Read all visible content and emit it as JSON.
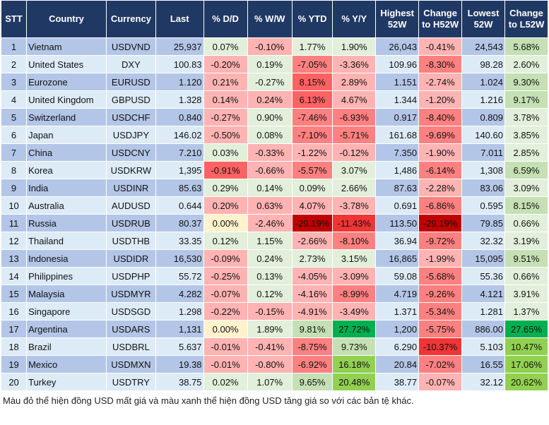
{
  "headers": [
    "STT",
    "Country",
    "Currency",
    "Last",
    "% D/D",
    "% W/W",
    "% YTD",
    "% Y/Y",
    "Highest 52W",
    "Change to H52W",
    "Lowest 52W",
    "Change to L52W"
  ],
  "colors": {
    "header": "#203864",
    "odd_row": "#b4c6e7",
    "even_row": "#ddebf7",
    "light_red": "#ffb3b3",
    "red": "#ff8080",
    "strong_red": "#ff6262",
    "bright_red": "#f03535",
    "dark_red": "#c00000",
    "light_green": "#e2efda",
    "green": "#c5e0b4",
    "strong_green": "#92d050",
    "dark_green": "#00b050",
    "neutral": "#fff2cc"
  },
  "rows": [
    {
      "stt": "1",
      "country": "Vietnam",
      "currency": "USDVND",
      "last": "25,937",
      "dd": "0.07%",
      "ww": "-0.10%",
      "ytd": "1.77%",
      "yy": "1.90%",
      "high": "26,043",
      "chg_high": "-0.41%",
      "low": "24,543",
      "chg_low": "5.68%",
      "shade": [
        "lg",
        "lr",
        "lg",
        "lg",
        "lr",
        "g"
      ]
    },
    {
      "stt": "2",
      "country": "United States",
      "currency": "DXY",
      "last": "100.83",
      "dd": "-0.20%",
      "ww": "0.19%",
      "ytd": "-7.05%",
      "yy": "-3.36%",
      "high": "109.96",
      "chg_high": "-8.30%",
      "low": "98.28",
      "chg_low": "2.60%",
      "shade": [
        "lr",
        "lg",
        "rd",
        "lr",
        "rd",
        "lg"
      ]
    },
    {
      "stt": "3",
      "country": "Eurozone",
      "currency": "EURUSD",
      "last": "1.120",
      "dd": "0.21%",
      "ww": "-0.27%",
      "ytd": "8.15%",
      "yy": "2.89%",
      "high": "1.151",
      "chg_high": "-2.74%",
      "low": "1.024",
      "chg_low": "9.30%",
      "shade": [
        "lr",
        "lg",
        "R",
        "lr",
        "lr",
        "g"
      ]
    },
    {
      "stt": "4",
      "country": "United Kingdom",
      "currency": "GBPUSD",
      "last": "1.328",
      "dd": "0.14%",
      "ww": "0.24%",
      "ytd": "6.13%",
      "yy": "4.67%",
      "high": "1.344",
      "chg_high": "-1.20%",
      "low": "1.216",
      "chg_low": "9.17%",
      "shade": [
        "lr",
        "lr",
        "R",
        "lr",
        "lr",
        "g"
      ]
    },
    {
      "stt": "5",
      "country": "Switzerland",
      "currency": "USDCHF",
      "last": "0.840",
      "dd": "-0.27%",
      "ww": "0.90%",
      "ytd": "-7.46%",
      "yy": "-6.93%",
      "high": "0.917",
      "chg_high": "-8.40%",
      "low": "0.809",
      "chg_low": "3.78%",
      "shade": [
        "lr",
        "lg",
        "rd",
        "rd",
        "rd",
        "lg"
      ]
    },
    {
      "stt": "6",
      "country": "Japan",
      "currency": "USDJPY",
      "last": "146.02",
      "dd": "-0.50%",
      "ww": "0.08%",
      "ytd": "-7.10%",
      "yy": "-5.71%",
      "high": "161.68",
      "chg_high": "-9.69%",
      "low": "140.60",
      "chg_low": "3.85%",
      "shade": [
        "lr",
        "lg",
        "rd",
        "rd",
        "rd",
        "lg"
      ]
    },
    {
      "stt": "7",
      "country": "China",
      "currency": "USDCNY",
      "last": "7.210",
      "dd": "0.03%",
      "ww": "-0.33%",
      "ytd": "-1.22%",
      "yy": "-0.12%",
      "high": "7.350",
      "chg_high": "-1.90%",
      "low": "7.011",
      "chg_low": "2.85%",
      "shade": [
        "lg",
        "lr",
        "lr",
        "lr",
        "lr",
        "lg"
      ]
    },
    {
      "stt": "8",
      "country": "Korea",
      "currency": "USDKRW",
      "last": "1,395",
      "dd": "-0.91%",
      "ww": "-0.66%",
      "ytd": "-5.57%",
      "yy": "3.07%",
      "high": "1,486",
      "chg_high": "-6.14%",
      "low": "1,308",
      "chg_low": "6.59%",
      "shade": [
        "R",
        "lr",
        "rd",
        "lg",
        "rd",
        "g"
      ]
    },
    {
      "stt": "9",
      "country": "India",
      "currency": "USDINR",
      "last": "85.63",
      "dd": "0.29%",
      "ww": "0.14%",
      "ytd": "0.09%",
      "yy": "2.66%",
      "high": "87.63",
      "chg_high": "-2.28%",
      "low": "83.06",
      "chg_low": "3.09%",
      "shade": [
        "lg",
        "lg",
        "lg",
        "lg",
        "lr",
        "lg"
      ]
    },
    {
      "stt": "10",
      "country": "Australia",
      "currency": "AUDUSD",
      "last": "0.644",
      "dd": "0.20%",
      "ww": "0.63%",
      "ytd": "4.07%",
      "yy": "-3.78%",
      "high": "0.691",
      "chg_high": "-6.86%",
      "low": "0.595",
      "chg_low": "8.15%",
      "shade": [
        "lr",
        "lr",
        "lr",
        "lr",
        "rd",
        "g"
      ]
    },
    {
      "stt": "11",
      "country": "Russia",
      "currency": "USDRUB",
      "last": "80.37",
      "dd": "0.00%",
      "ww": "-2.46%",
      "ytd": "-29.19%",
      "yy": "-11.43%",
      "high": "113.50",
      "chg_high": "-29.19%",
      "low": "79.85",
      "chg_low": "0.66%",
      "shade": [
        "y",
        "lr",
        "dr",
        "rr",
        "dr",
        "lg"
      ]
    },
    {
      "stt": "12",
      "country": "Thailand",
      "currency": "USDTHB",
      "last": "33.35",
      "dd": "0.12%",
      "ww": "1.15%",
      "ytd": "-2.66%",
      "yy": "-8.10%",
      "high": "36.94",
      "chg_high": "-9.72%",
      "low": "32.32",
      "chg_low": "3.19%",
      "shade": [
        "lg",
        "lg",
        "lr",
        "rd",
        "rd",
        "lg"
      ]
    },
    {
      "stt": "13",
      "country": "Indonesia",
      "currency": "USDIDR",
      "last": "16,530",
      "dd": "-0.09%",
      "ww": "0.24%",
      "ytd": "2.73%",
      "yy": "3.15%",
      "high": "16,865",
      "chg_high": "-1.99%",
      "low": "15,095",
      "chg_low": "9.51%",
      "shade": [
        "lr",
        "lg",
        "lg",
        "lg",
        "lr",
        "g"
      ]
    },
    {
      "stt": "14",
      "country": "Philippines",
      "currency": "USDPHP",
      "last": "55.72",
      "dd": "-0.25%",
      "ww": "0.13%",
      "ytd": "-4.05%",
      "yy": "-3.09%",
      "high": "59.08",
      "chg_high": "-5.68%",
      "low": "55.36",
      "chg_low": "0.66%",
      "shade": [
        "lr",
        "lg",
        "lr",
        "lr",
        "rd",
        "lg"
      ]
    },
    {
      "stt": "15",
      "country": "Malaysia",
      "currency": "USDMYR",
      "last": "4.282",
      "dd": "-0.07%",
      "ww": "0.12%",
      "ytd": "-4.16%",
      "yy": "-8.99%",
      "high": "4.719",
      "chg_high": "-9.26%",
      "low": "4.121",
      "chg_low": "3.91%",
      "shade": [
        "lr",
        "lg",
        "lr",
        "rd",
        "rd",
        "lg"
      ]
    },
    {
      "stt": "16",
      "country": "Singapore",
      "currency": "USDSGD",
      "last": "1.298",
      "dd": "-0.22%",
      "ww": "-0.15%",
      "ytd": "-4.91%",
      "yy": "-3.49%",
      "high": "1.371",
      "chg_high": "-5.34%",
      "low": "1.281",
      "chg_low": "1.37%",
      "shade": [
        "lr",
        "lr",
        "lr",
        "lr",
        "rd",
        "lg"
      ]
    },
    {
      "stt": "17",
      "country": "Argentina",
      "currency": "USDARS",
      "last": "1,131",
      "dd": "0.00%",
      "ww": "1.89%",
      "ytd": "9.81%",
      "yy": "27.72%",
      "high": "1,200",
      "chg_high": "-5.75%",
      "low": "886.00",
      "chg_low": "27.65%",
      "shade": [
        "y",
        "lg",
        "g",
        "dg",
        "rd",
        "dg"
      ]
    },
    {
      "stt": "18",
      "country": "Brazil",
      "currency": "USDBRL",
      "last": "5.637",
      "dd": "-0.01%",
      "ww": "-0.41%",
      "ytd": "-8.75%",
      "yy": "9.73%",
      "high": "6.290",
      "chg_high": "-10.37%",
      "low": "5.103",
      "chg_low": "10.47%",
      "shade": [
        "lr",
        "lr",
        "rd",
        "g",
        "rr",
        "G"
      ]
    },
    {
      "stt": "19",
      "country": "Mexico",
      "currency": "USDMXN",
      "last": "19.38",
      "dd": "-0.01%",
      "ww": "-0.80%",
      "ytd": "-6.92%",
      "yy": "16.18%",
      "high": "20.84",
      "chg_high": "-7.02%",
      "low": "16.55",
      "chg_low": "17.06%",
      "shade": [
        "lr",
        "lr",
        "rd",
        "G",
        "rd",
        "G"
      ]
    },
    {
      "stt": "20",
      "country": "Turkey",
      "currency": "USDTRY",
      "last": "38.75",
      "dd": "0.02%",
      "ww": "1.07%",
      "ytd": "9.65%",
      "yy": "20.48%",
      "high": "38.77",
      "chg_high": "-0.07%",
      "low": "32.12",
      "chg_low": "20.62%",
      "shade": [
        "lg",
        "lg",
        "g",
        "G",
        "lr",
        "G"
      ]
    }
  ],
  "footer": "Màu đỏ thể hiện đồng USD mất giá và màu xanh thể hiện đồng USD tăng giá so với các bản tệ khác."
}
